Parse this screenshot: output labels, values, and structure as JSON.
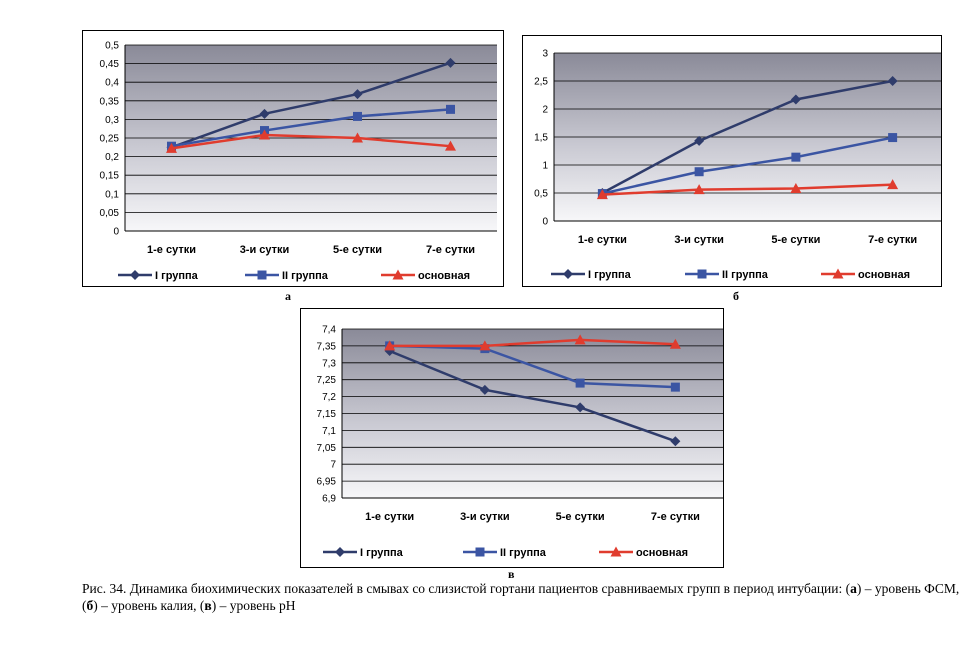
{
  "panels": [
    {
      "letter": "а",
      "chart_data": {
        "type": "line",
        "categories": [
          "1-е сутки",
          "3-и сутки",
          "5-е сутки",
          "7-е сутки"
        ],
        "ylim": [
          0,
          0.5
        ],
        "yticks": [
          "0,5",
          "0,45",
          "0,4",
          "0,35",
          "0,3",
          "0,25",
          "0,2",
          "0,15",
          "0,1",
          "0,05",
          "0"
        ],
        "ytick_values": [
          0.5,
          0.45,
          0.4,
          0.35,
          0.3,
          0.25,
          0.2,
          0.15,
          0.1,
          0.05,
          0
        ],
        "grid": true,
        "legend_position": "bottom",
        "series": [
          {
            "name": "I группа",
            "values": [
              0.225,
              0.315,
              0.368,
              0.452
            ],
            "color": "#2f3c6b",
            "marker": "diamond"
          },
          {
            "name": "II группа",
            "values": [
              0.228,
              0.27,
              0.308,
              0.327
            ],
            "color": "#3b55a3",
            "marker": "square"
          },
          {
            "name": "основная",
            "values": [
              0.222,
              0.258,
              0.25,
              0.228
            ],
            "color": "#e03c2e",
            "marker": "triangle"
          }
        ]
      }
    },
    {
      "letter": "б",
      "chart_data": {
        "type": "line",
        "categories": [
          "1-е сутки",
          "3-и сутки",
          "5-е сутки",
          "7-е сутки"
        ],
        "ylim": [
          0,
          3
        ],
        "yticks": [
          "3",
          "2,5",
          "2",
          "1,5",
          "1",
          "0,5",
          "0"
        ],
        "ytick_values": [
          3,
          2.5,
          2,
          1.5,
          1,
          0.5,
          0
        ],
        "grid": true,
        "legend_position": "bottom",
        "series": [
          {
            "name": "I группа",
            "values": [
              0.5,
              1.43,
              2.17,
              2.5
            ],
            "color": "#2f3c6b",
            "marker": "diamond"
          },
          {
            "name": "II группа",
            "values": [
              0.49,
              0.88,
              1.14,
              1.49
            ],
            "color": "#3b55a3",
            "marker": "square"
          },
          {
            "name": "основная",
            "values": [
              0.47,
              0.56,
              0.58,
              0.65
            ],
            "color": "#e03c2e",
            "marker": "triangle"
          }
        ]
      }
    },
    {
      "letter": "в",
      "chart_data": {
        "type": "line",
        "categories": [
          "1-е сутки",
          "3-и сутки",
          "5-е сутки",
          "7-е сутки"
        ],
        "ylim": [
          6.9,
          7.4
        ],
        "yticks": [
          "7,4",
          "7,35",
          "7,3",
          "7,25",
          "7,2",
          "7,15",
          "7,1",
          "7,05",
          "7",
          "6,95",
          "6,9"
        ],
        "ytick_values": [
          7.4,
          7.35,
          7.3,
          7.25,
          7.2,
          7.15,
          7.1,
          7.05,
          7.0,
          6.95,
          6.9
        ],
        "grid": true,
        "legend_position": "bottom",
        "series": [
          {
            "name": "I группа",
            "values": [
              7.335,
              7.22,
              7.168,
              7.068
            ],
            "color": "#2f3c6b",
            "marker": "diamond"
          },
          {
            "name": "II группа",
            "values": [
              7.35,
              7.342,
              7.24,
              7.228
            ],
            "color": "#3b55a3",
            "marker": "square"
          },
          {
            "name": "основная",
            "values": [
              7.35,
              7.35,
              7.368,
              7.355
            ],
            "color": "#e03c2e",
            "marker": "triangle"
          }
        ]
      }
    }
  ],
  "caption": {
    "prefix": "Рис. 34. Динамика биохимических показателей в смывах со слизистой гортани пациентов сравниваемых групп в период интубации: (",
    "a": "а",
    "mid1": ") – уровень ФСМ, (",
    "b": "б",
    "mid2": ") – уровень калия, (",
    "c": "в",
    "end": ") – уровень pH"
  }
}
